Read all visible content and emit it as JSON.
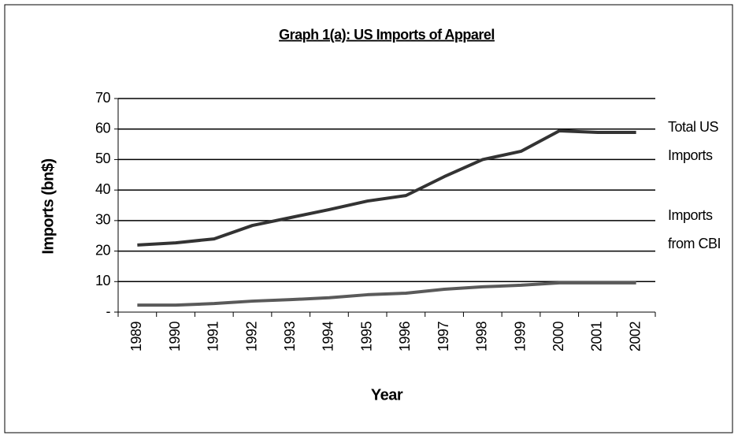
{
  "chart_data": {
    "type": "line",
    "title": "Graph 1(a): US Imports of Apparel",
    "y_label": "Imports (bn$)",
    "x_label": "Year",
    "categories": [
      "1989",
      "1990",
      "1991",
      "1992",
      "1993",
      "1994",
      "1995",
      "1996",
      "1997",
      "1998",
      "1999",
      "2000",
      "2001",
      "2002"
    ],
    "series": [
      {
        "name": "Total US Imports",
        "color": "#333333",
        "values": [
          22,
          22.7,
          24,
          28.4,
          31,
          33.6,
          36.4,
          38.2,
          44.4,
          50,
          52.7,
          59.4,
          58.9,
          58.9
        ]
      },
      {
        "name": "Imports from CBI",
        "color": "#5a5a5a",
        "values": [
          2.3,
          2.3,
          2.8,
          3.6,
          4.1,
          4.7,
          5.7,
          6.2,
          7.5,
          8.3,
          8.8,
          9.6,
          9.6,
          9.6
        ]
      }
    ],
    "ylim": [
      0,
      70
    ],
    "yticks": [
      {
        "value": 0,
        "label": "-"
      },
      10,
      20,
      30,
      40,
      50,
      60,
      70
    ],
    "grid": true
  }
}
